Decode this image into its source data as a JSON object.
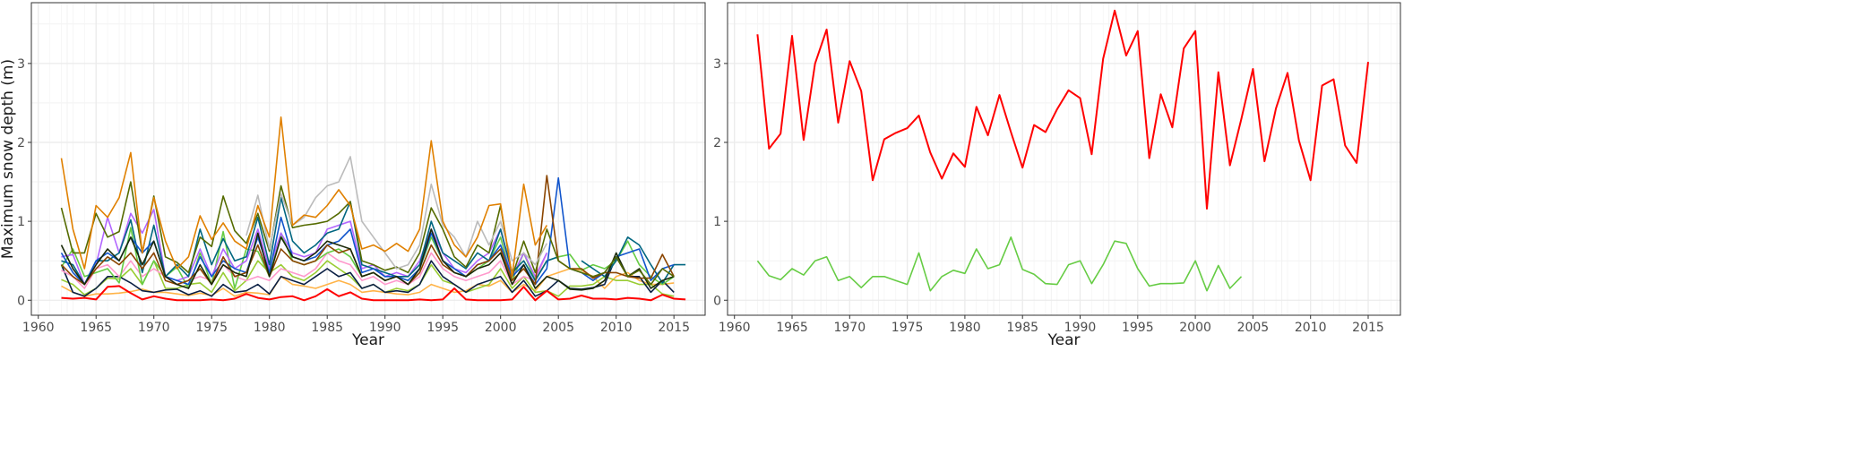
{
  "chart_data": [
    {
      "type": "line",
      "xlabel": "Year",
      "ylabel": "Maximum snow depth (m)",
      "xlim": [
        1959.4,
        2017.7
      ],
      "ylim": [
        -0.19,
        3.77
      ],
      "xticks": [
        1960,
        1965,
        1970,
        1975,
        1980,
        1985,
        1990,
        1995,
        2000,
        2005,
        2010,
        2015
      ],
      "yticks": [
        0,
        1,
        2,
        3
      ],
      "grid": true,
      "legend": "none",
      "series": [
        {
          "color": "#FFB347",
          "start_year": 1962,
          "values": [
            0.18,
            0.1,
            0.05,
            0.08,
            0.08,
            0.09,
            0.11,
            0.14,
            0.1,
            0.1,
            0.08,
            0.06,
            0.09,
            0.06,
            0.15,
            0.05,
            0.1,
            0.09,
            0.07,
            0.3,
            0.2,
            0.18,
            0.15,
            0.2,
            0.25,
            0.2,
            0.1,
            0.12,
            0.1,
            0.08,
            0.07,
            0.1,
            0.2,
            0.15,
            0.1,
            0.12,
            0.2,
            0.18,
            0.25,
            0.1,
            0.2,
            0.12,
            0.3,
            0.35,
            0.4,
            0.38,
            0.3,
            0.15,
            0.3,
            0.35,
            0.25,
            0.2,
            0.2,
            0.22
          ]
        },
        {
          "color": "#99CC33",
          "start_year": 1962,
          "values": [
            0.26,
            0.2,
            0.07,
            0.15,
            0.28,
            0.27,
            0.4,
            0.2,
            0.5,
            0.15,
            0.15,
            0.2,
            0.22,
            0.1,
            0.35,
            0.12,
            0.25,
            0.5,
            0.35,
            0.45,
            0.3,
            0.25,
            0.35,
            0.5,
            0.4,
            0.3,
            0.15,
            0.2,
            0.1,
            0.15,
            0.12,
            0.2,
            0.45,
            0.25,
            0.2,
            0.1,
            0.15,
            0.2,
            0.4,
            0.15,
            0.3,
            0.1,
            0.12,
            0.05,
            0.18,
            0.18,
            0.2,
            0.3,
            0.25,
            0.25,
            0.2,
            0.2,
            0.08,
            0.05
          ]
        },
        {
          "color": "#0A1F44",
          "start_year": 1962,
          "values": [
            0.45,
            0.1,
            0.05,
            0.15,
            0.3,
            0.3,
            0.22,
            0.12,
            0.1,
            0.13,
            0.14,
            0.07,
            0.12,
            0.05,
            0.2,
            0.1,
            0.12,
            0.2,
            0.08,
            0.3,
            0.25,
            0.2,
            0.3,
            0.4,
            0.3,
            0.35,
            0.15,
            0.2,
            0.1,
            0.12,
            0.1,
            0.2,
            0.5,
            0.3,
            0.2,
            0.1,
            0.2,
            0.25,
            0.3,
            0.1,
            0.25,
            0.05,
            0.12,
            0.25,
            0.15,
            0.14,
            0.16,
            0.2,
            0.55,
            0.3,
            0.3,
            0.1,
            0.25,
            0.1
          ]
        },
        {
          "color": "#FF99CC",
          "start_year": 1962,
          "values": [
            0.38,
            0.3,
            0.15,
            0.4,
            0.45,
            0.3,
            0.5,
            0.3,
            0.4,
            0.3,
            0.2,
            0.25,
            0.3,
            0.25,
            0.45,
            0.3,
            0.25,
            0.3,
            0.25,
            0.4,
            0.35,
            0.3,
            0.4,
            0.6,
            0.5,
            0.45,
            0.25,
            0.3,
            0.2,
            0.25,
            0.2,
            0.3,
            0.6,
            0.4,
            0.3,
            0.25,
            0.3,
            0.35,
            0.5,
            0.2,
            0.3,
            0.25,
            0.6
          ]
        },
        {
          "color": "#66CC44",
          "start_year": 1962,
          "values": [
            0.42,
            0.65,
            0.3,
            0.35,
            0.4,
            0.22,
            0.92,
            0.2,
            0.5,
            0.3,
            0.42,
            0.15,
            0.6,
            0.2,
            0.87,
            0.15,
            0.65,
            0.62,
            0.3,
            0.85,
            0.5,
            0.45,
            0.5,
            0.6,
            0.65,
            0.55,
            0.3,
            0.35,
            0.25,
            0.3,
            0.25,
            0.4,
            0.8,
            0.5,
            0.4,
            0.3,
            0.4,
            0.5,
            0.8,
            0.25,
            0.6,
            0.25,
            0.5,
            0.55,
            0.58,
            0.38,
            0.45,
            0.4,
            0.5,
            0.75,
            0.45,
            0.3,
            0.2,
            0.3
          ]
        },
        {
          "color": "#B266FF",
          "start_year": 1962,
          "values": [
            0.55,
            0.58,
            0.2,
            0.45,
            1.05,
            0.6,
            1.1,
            0.85,
            1.15,
            0.3,
            0.25,
            0.3,
            0.65,
            0.3,
            0.65,
            0.4,
            0.5,
            0.9,
            0.4,
            0.85,
            0.6,
            0.55,
            0.6,
            0.9,
            0.95,
            1.0,
            0.4,
            0.45,
            0.3,
            0.35,
            0.3,
            0.5,
            0.9,
            0.6,
            0.4,
            0.35,
            0.5,
            0.6,
            0.9,
            0.3,
            0.6,
            0.3,
            0.6
          ]
        },
        {
          "color": "#006680",
          "start_year": 1962,
          "values": [
            0.5,
            0.45,
            0.2,
            0.5,
            0.5,
            0.6,
            1.02,
            0.35,
            0.95,
            0.3,
            0.45,
            0.3,
            0.9,
            0.45,
            0.78,
            0.5,
            0.55,
            1.05,
            0.45,
            1.3,
            0.75,
            0.6,
            0.7,
            0.85,
            0.9,
            1.25,
            0.45,
            0.4,
            0.35,
            0.3,
            0.3,
            0.45,
            1.0,
            0.6,
            0.5,
            0.4,
            0.6,
            0.5,
            0.9,
            0.35,
            0.5,
            0.25,
            0.5,
            0.55,
            null,
            0.5,
            0.4,
            0.3,
            0.5,
            0.8,
            0.7,
            0.45,
            0.22,
            0.45,
            0.45
          ]
        },
        {
          "color": "#1155CC",
          "start_year": 1962,
          "values": [
            0.6,
            0.35,
            0.2,
            0.5,
            0.6,
            0.5,
            0.8,
            0.6,
            0.75,
            0.3,
            0.25,
            0.2,
            0.55,
            0.3,
            0.5,
            0.4,
            0.35,
            0.8,
            0.35,
            1.05,
            0.55,
            0.5,
            0.55,
            0.7,
            0.75,
            0.9,
            0.35,
            0.4,
            0.3,
            0.3,
            0.25,
            0.4,
            0.85,
            0.5,
            0.4,
            0.3,
            0.45,
            0.5,
            0.7,
            0.3,
            0.45,
            0.2,
            0.4,
            1.55,
            0.4,
            0.35,
            0.25,
            0.35,
            0.55,
            0.6,
            0.65,
            0.25,
            0.4,
            0.45
          ]
        },
        {
          "color": "#8B4500",
          "start_year": 1962,
          "values": [
            0.45,
            0.3,
            0.2,
            0.4,
            0.55,
            0.45,
            0.6,
            0.4,
            0.6,
            0.25,
            0.2,
            0.25,
            0.4,
            0.2,
            0.55,
            0.3,
            0.35,
            0.7,
            0.3,
            0.65,
            0.5,
            0.45,
            0.5,
            0.7,
            0.6,
            0.65,
            0.3,
            0.35,
            0.25,
            0.3,
            0.2,
            0.35,
            0.7,
            0.45,
            0.35,
            0.3,
            0.45,
            0.5,
            0.65,
            0.25,
            0.4,
            0.2,
            1.58,
            0.5,
            0.4,
            0.4,
            0.28,
            0.35,
            0.35,
            0.3,
            0.28,
            0.28,
            0.58,
            0.3
          ]
        },
        {
          "color": "#1A2A0A",
          "start_year": 1962,
          "values": [
            0.7,
            0.4,
            0.2,
            0.45,
            0.65,
            0.5,
            0.8,
            0.45,
            0.75,
            0.3,
            0.2,
            0.15,
            0.45,
            0.2,
            0.45,
            0.35,
            0.3,
            0.85,
            0.3,
            0.8,
            0.55,
            0.5,
            0.6,
            0.75,
            0.7,
            0.65,
            0.3,
            0.35,
            0.25,
            0.3,
            0.2,
            0.4,
            0.9,
            0.5,
            0.35,
            0.3,
            0.4,
            0.45,
            0.6,
            0.2,
            0.45,
            0.15,
            0.3,
            0.25,
            0.14,
            0.13,
            0.15,
            0.25,
            0.6,
            0.3,
            0.4,
            0.15,
            0.25,
            0.3
          ]
        },
        {
          "color": "#556B00",
          "start_year": 1962,
          "values": [
            1.17,
            0.6,
            0.6,
            1.1,
            0.8,
            0.87,
            1.5,
            0.6,
            1.32,
            0.55,
            0.48,
            0.35,
            0.8,
            0.68,
            1.32,
            0.88,
            0.72,
            1.1,
            0.62,
            1.45,
            0.92,
            0.95,
            0.97,
            1.0,
            1.1,
            1.25,
            0.5,
            0.45,
            0.38,
            0.42,
            0.35,
            0.6,
            1.17,
            0.9,
            0.55,
            0.42,
            0.7,
            0.6,
            1.2,
            0.3,
            0.75,
            0.35,
            0.9,
            0.5,
            0.4,
            0.35,
            0.3,
            0.35,
            0.55,
            0.3,
            0.38,
            0.2,
            0.4,
            0.3
          ]
        },
        {
          "color": "#BBBBBB",
          "start_year": 1978,
          "values": [
            0.82,
            1.33,
            0.65,
            1.35,
            0.95,
            1.05,
            1.3,
            1.45,
            1.5,
            1.82,
            1.0,
            0.8,
            0.6,
            0.4,
            0.45,
            0.7,
            1.47,
            0.95,
            0.8,
            0.55,
            1.0,
            0.7,
            1.0,
            0.5,
            0.6,
            0.45,
            0.72
          ]
        },
        {
          "color": "#E08000",
          "start_year": 1962,
          "values": [
            1.8,
            0.9,
            0.4,
            1.2,
            1.05,
            1.3,
            1.87,
            0.6,
            1.3,
            0.75,
            0.4,
            0.55,
            1.07,
            0.77,
            0.98,
            0.75,
            0.65,
            1.2,
            0.8,
            2.32,
            0.95,
            1.08,
            1.05,
            1.2,
            1.4,
            1.2,
            0.65,
            0.7,
            0.62,
            0.72,
            0.62,
            0.9,
            2.02,
            1.0,
            0.7,
            0.55,
            0.8,
            1.2,
            1.22,
            0.3,
            1.47,
            0.7,
            0.95
          ]
        },
        {
          "color": "#FF0000",
          "start_year": 1962,
          "values": [
            0.03,
            0.02,
            0.03,
            0.01,
            0.17,
            0.18,
            0.09,
            0.01,
            0.05,
            0.02,
            0.0,
            0.0,
            0.0,
            0.01,
            0.0,
            0.02,
            0.08,
            0.03,
            0.01,
            0.04,
            0.05,
            0.0,
            0.05,
            0.14,
            0.05,
            0.1,
            0.02,
            0.0,
            0.0,
            0.0,
            0.0,
            0.01,
            0.0,
            0.01,
            0.15,
            0.01,
            0.0,
            0.0,
            0.0,
            0.01,
            0.17,
            0.0,
            0.12,
            0.01,
            0.02,
            0.06,
            0.02,
            0.02,
            0.01,
            0.03,
            0.02,
            0.0,
            0.07,
            0.02,
            0.01
          ]
        }
      ]
    },
    {
      "type": "line",
      "xlabel": "Year",
      "ylabel": "",
      "xlim": [
        1959.4,
        2017.8
      ],
      "ylim": [
        -0.19,
        3.77
      ],
      "xticks": [
        1960,
        1965,
        1970,
        1975,
        1980,
        1985,
        1990,
        1995,
        2000,
        2005,
        2010,
        2015
      ],
      "yticks": [
        0,
        1,
        2,
        3
      ],
      "grid": true,
      "legend": "none",
      "series": [
        {
          "color": "#FF0000",
          "start_year": 1962,
          "values": [
            3.37,
            1.92,
            2.11,
            3.35,
            2.03,
            3.0,
            3.43,
            2.25,
            3.03,
            2.65,
            1.52,
            2.04,
            2.12,
            2.18,
            2.34,
            1.87,
            1.54,
            1.86,
            1.69,
            2.45,
            2.09,
            2.6,
            2.13,
            1.68,
            2.22,
            2.13,
            2.42,
            2.66,
            2.56,
            1.85,
            3.06,
            3.67,
            3.1,
            3.41,
            1.8,
            2.61,
            2.19,
            3.19,
            3.41,
            1.16,
            2.89,
            1.71,
            2.3,
            2.93,
            1.76,
            2.43,
            2.88,
            2.02,
            1.52,
            2.72,
            2.8,
            1.96,
            1.74,
            3.02
          ]
        },
        {
          "color": "#66CC44",
          "start_year": 1962,
          "values": [
            0.5,
            0.31,
            0.26,
            0.4,
            0.32,
            0.5,
            0.55,
            0.25,
            0.3,
            0.16,
            0.3,
            0.3,
            0.25,
            0.2,
            0.6,
            0.12,
            0.3,
            0.38,
            0.34,
            0.65,
            0.4,
            0.45,
            0.8,
            0.39,
            0.33,
            0.21,
            0.2,
            0.45,
            0.5,
            0.21,
            0.45,
            0.75,
            0.72,
            0.4,
            0.18,
            0.21,
            0.21,
            0.22,
            0.5,
            0.12,
            0.44,
            0.15,
            0.3
          ]
        }
      ]
    }
  ]
}
